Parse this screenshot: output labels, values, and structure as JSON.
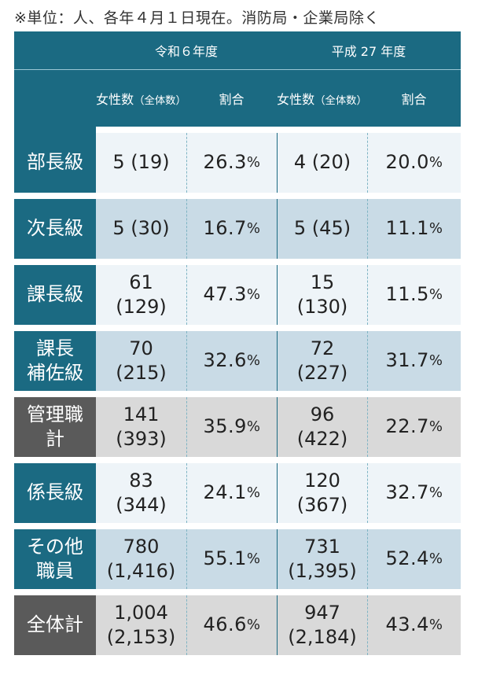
{
  "note": "※単位：人、各年４月１日現在。消防局・企業局除く",
  "header": {
    "group1": "令和６年度",
    "group2": "平成 27 年度",
    "count_label_line1": "女性数",
    "count_label_line2": "（全体数）",
    "ratio_label": "割合"
  },
  "rows": [
    {
      "label": [
        "部長級"
      ],
      "r6_count": "5 (19)",
      "r6_ratio": "26.3",
      "h27_count": "4 (20)",
      "h27_ratio": "20.0",
      "style": "light"
    },
    {
      "label": [
        "次長級"
      ],
      "r6_count": "5 (30)",
      "r6_ratio": "16.7",
      "h27_count": "5 (45)",
      "h27_ratio": "11.1",
      "style": "blue"
    },
    {
      "label": [
        "課長級"
      ],
      "r6_count": [
        "61",
        "(129)"
      ],
      "r6_ratio": "47.3",
      "h27_count": [
        "15",
        "(130)"
      ],
      "h27_ratio": "11.5",
      "style": "light"
    },
    {
      "label": [
        "課長",
        "補佐級"
      ],
      "r6_count": [
        "70",
        "(215)"
      ],
      "r6_ratio": "32.6",
      "h27_count": [
        "72",
        "(227)"
      ],
      "h27_ratio": "31.7",
      "style": "blue"
    },
    {
      "label": [
        "管理職",
        "計"
      ],
      "r6_count": [
        "141",
        "(393)"
      ],
      "r6_ratio": "35.9",
      "h27_count": [
        "96",
        "(422)"
      ],
      "h27_ratio": "22.7",
      "style": "gray"
    },
    {
      "label": [
        "係長級"
      ],
      "r6_count": [
        "83",
        "(344)"
      ],
      "r6_ratio": "24.1",
      "h27_count": [
        "120",
        "(367)"
      ],
      "h27_ratio": "32.7",
      "style": "light"
    },
    {
      "label": [
        "その他",
        "職員"
      ],
      "r6_count": [
        "780",
        "(1,416)"
      ],
      "r6_ratio": "55.1",
      "h27_count": [
        "731",
        "(1,395)"
      ],
      "h27_ratio": "52.4",
      "style": "blue"
    },
    {
      "label": [
        "全体計"
      ],
      "r6_count": [
        "1,004",
        "(2,153)"
      ],
      "r6_ratio": "46.6",
      "h27_count": [
        "947",
        "(2,184)"
      ],
      "h27_ratio": "43.4",
      "style": "gray"
    }
  ],
  "percent_unit": "%",
  "colors": {
    "header": "#1b6a82",
    "light": "#eef4f8",
    "blue": "#c9dbe6",
    "gray": "#d9d9d9",
    "gray_label": "#5a5a5a"
  }
}
